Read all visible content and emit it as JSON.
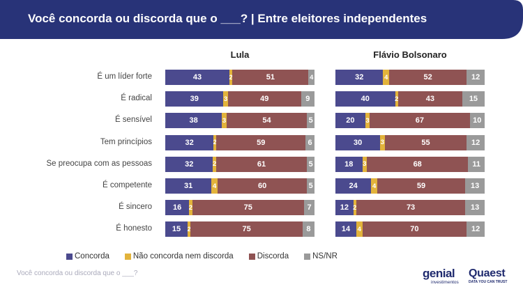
{
  "header": {
    "title": "Você concorda ou discorda que o ___? | Entre eleitores independentes",
    "bg_color": "#283378"
  },
  "chart_data": {
    "type": "bar",
    "orientation": "horizontal-stacked-100",
    "categories": [
      "É um líder forte",
      "É radical",
      "É sensível",
      "Tem princípios",
      "Se preocupa com as pessoas",
      "É competente",
      "É sincero",
      "É honesto"
    ],
    "series_names": [
      "Concorda",
      "Não concorda nem discorda",
      "Discorda",
      "NS/NR"
    ],
    "series_colors": [
      "#4b4a8e",
      "#e2b33b",
      "#8f5353",
      "#9a9a9a"
    ],
    "panels": [
      {
        "title": "Lula",
        "values": [
          [
            43,
            2,
            51,
            4
          ],
          [
            39,
            3,
            49,
            9
          ],
          [
            38,
            3,
            54,
            5
          ],
          [
            32,
            2,
            59,
            6
          ],
          [
            32,
            2,
            61,
            5
          ],
          [
            31,
            4,
            60,
            5
          ],
          [
            16,
            2,
            75,
            7
          ],
          [
            15,
            2,
            75,
            8
          ]
        ]
      },
      {
        "title": "Flávio Bolsonaro",
        "values": [
          [
            32,
            4,
            52,
            12
          ],
          [
            40,
            2,
            43,
            15
          ],
          [
            20,
            3,
            67,
            10
          ],
          [
            30,
            3,
            55,
            12
          ],
          [
            18,
            3,
            68,
            11
          ],
          [
            24,
            4,
            59,
            13
          ],
          [
            12,
            2,
            73,
            13
          ],
          [
            14,
            4,
            70,
            12
          ]
        ]
      }
    ],
    "legend_position": "bottom-left"
  },
  "legend": {
    "items": [
      "Concorda",
      "Não concorda nem discorda",
      "Discorda",
      "NS/NR"
    ]
  },
  "footnote": "Você concorda ou discorda que o ___?",
  "logos": {
    "genial_word": "genial",
    "genial_sub": "investimentos",
    "quaest_word": "Quaest",
    "quaest_sub": "DATA YOU CAN TRUST"
  }
}
